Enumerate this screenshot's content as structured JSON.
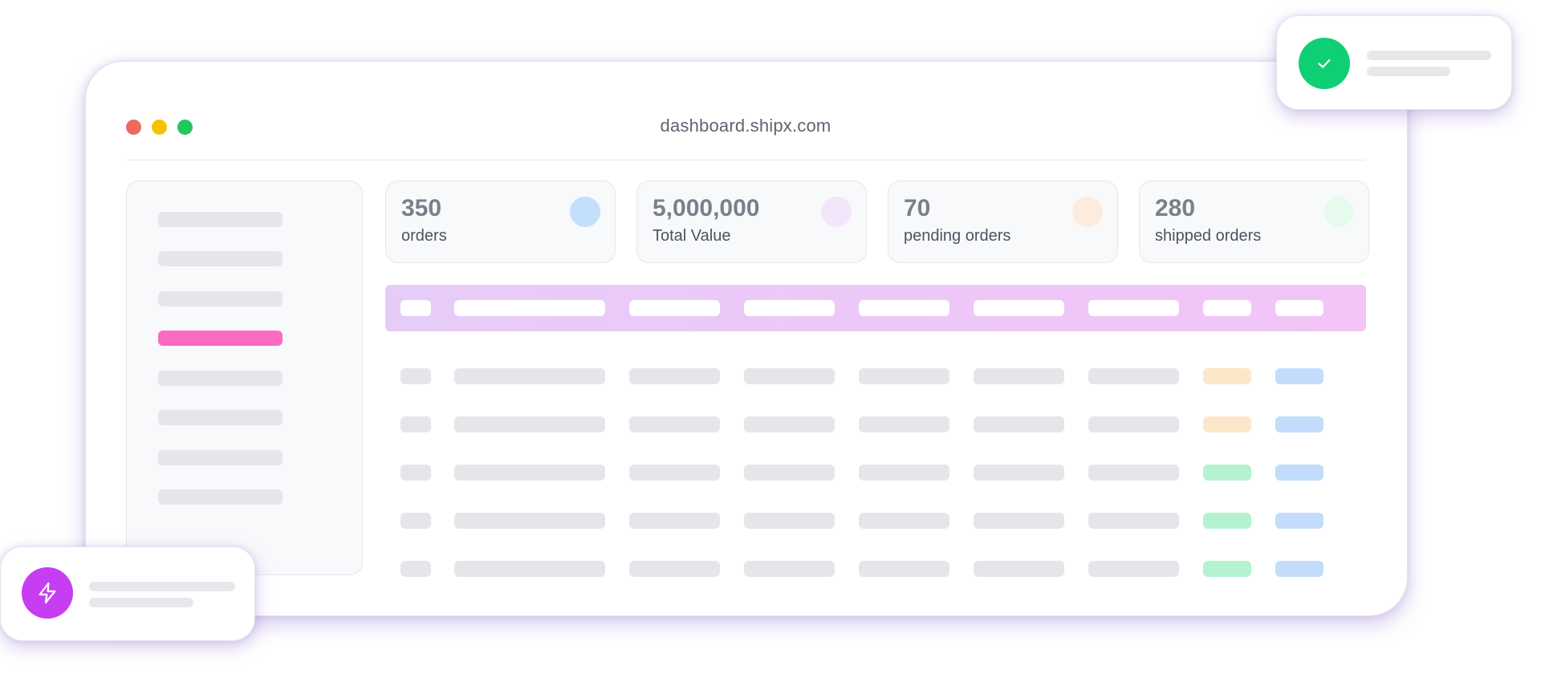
{
  "window": {
    "url": "dashboard.shipx.com",
    "traffic_lights": [
      "close",
      "minimize",
      "maximize"
    ]
  },
  "stats": [
    {
      "value": "350",
      "label": "orders",
      "badge_color": "#c3dffb"
    },
    {
      "value": "5,000,000",
      "label": "Total Value",
      "badge_color": "#f3e6fb"
    },
    {
      "value": "70",
      "label": "pending orders",
      "badge_color": "#fdecdd"
    },
    {
      "value": "280",
      "label": "shipped orders",
      "badge_color": "#e6fbee"
    }
  ],
  "sidebar": {
    "item_count": 8,
    "active_index": 3
  },
  "table": {
    "row_count": 5,
    "status_colors": [
      "orange",
      "orange",
      "green",
      "green",
      "green"
    ],
    "tag_color": "blue"
  },
  "notifications": {
    "top_icon": "check-icon",
    "bottom_icon": "lightning-icon"
  },
  "colors": {
    "accent_pink": "#fb6bc0",
    "success_green": "#0fcf74",
    "purple": "#c63df2"
  }
}
